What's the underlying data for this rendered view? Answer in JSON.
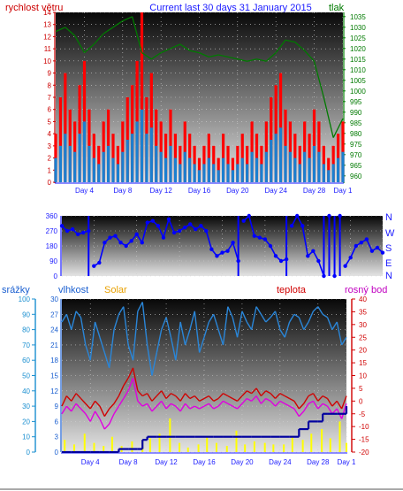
{
  "header": {
    "left_label": "rychlost větru",
    "title": "Current last 30 days 31 January 2015",
    "right_label": "tlak"
  },
  "colors": {
    "wind_gust": "#ff0000",
    "wind_avg": "#1a7fd0",
    "pressure": "#007a00",
    "direction": "#0000ff",
    "humidity": "#2a86d8",
    "solar": "#ffff00",
    "rain": "#0000a0",
    "temperature": "#d00000",
    "dewpoint": "#e000e0",
    "dew_label": "#c000c0",
    "solar_label": "#e8a000",
    "rain_axis": "#1a8fd0",
    "humidity_axis": "#1a5fd0"
  },
  "chart_data": [
    {
      "id": "wind-pressure",
      "type": "line",
      "title": "Current last 30 days 31 January 2015",
      "x_ticks": [
        "Day 4",
        "Day 8",
        "Day 12",
        "Day 16",
        "Day 20",
        "Day 24",
        "Day 28",
        "Day 1"
      ],
      "x_range_days": [
        1,
        31
      ],
      "y_left": {
        "label": "rychlost větru",
        "min": 0,
        "max": 14,
        "ticks": [
          0,
          1,
          2,
          3,
          4,
          5,
          6,
          7,
          8,
          9,
          10,
          11,
          12,
          13,
          14
        ]
      },
      "y_right": {
        "label": "tlak",
        "min": 957,
        "max": 1037,
        "ticks": [
          960,
          965,
          970,
          975,
          980,
          985,
          990,
          995,
          1000,
          1005,
          1010,
          1015,
          1020,
          1025,
          1030,
          1035
        ]
      },
      "grid": true,
      "series": [
        {
          "name": "gust",
          "axis": "left",
          "x": [
            1,
            1.5,
            2,
            2.5,
            3,
            3.5,
            4,
            4.5,
            5,
            5.5,
            6,
            6.5,
            7,
            7.5,
            8,
            8.5,
            9,
            9.5,
            10,
            10.5,
            11,
            11.5,
            12,
            12.5,
            13,
            13.5,
            14,
            14.5,
            15,
            15.5,
            16,
            16.5,
            17,
            17.5,
            18,
            18.5,
            19,
            19.5,
            20,
            20.5,
            21,
            21.5,
            22,
            22.5,
            23,
            23.5,
            24,
            24.5,
            25,
            25.5,
            26,
            26.5,
            27,
            27.5,
            28,
            28.5,
            29,
            29.5,
            30,
            30.5,
            31
          ],
          "values": [
            4,
            7,
            9,
            6,
            5,
            8,
            10,
            6,
            4,
            3,
            5,
            6,
            4,
            3,
            5,
            7,
            8,
            10,
            14,
            7,
            9,
            6,
            5,
            4,
            6,
            4,
            3,
            5,
            4,
            3,
            2,
            3,
            4,
            3,
            2,
            4,
            3,
            2,
            3,
            4,
            3,
            5,
            4,
            3,
            5,
            7,
            8,
            9,
            6,
            5,
            4,
            3,
            5,
            4,
            6,
            5,
            3,
            2,
            3,
            4,
            5
          ]
        },
        {
          "name": "average",
          "axis": "left",
          "x": [
            1,
            1.5,
            2,
            2.5,
            3,
            3.5,
            4,
            4.5,
            5,
            5.5,
            6,
            6.5,
            7,
            7.5,
            8,
            8.5,
            9,
            9.5,
            10,
            10.5,
            11,
            11.5,
            12,
            12.5,
            13,
            13.5,
            14,
            14.5,
            15,
            15.5,
            16,
            16.5,
            17,
            17.5,
            18,
            18.5,
            19,
            19.5,
            20,
            20.5,
            21,
            21.5,
            22,
            22.5,
            23,
            23.5,
            24,
            24.5,
            25,
            25.5,
            26,
            26.5,
            27,
            27.5,
            28,
            28.5,
            29,
            29.5,
            30,
            30.5,
            31
          ],
          "values": [
            2,
            3,
            4,
            3,
            2.5,
            4,
            5,
            3,
            2,
            1.5,
            2.5,
            3,
            2,
            1.5,
            2.5,
            3.5,
            4,
            5,
            6,
            4,
            4.5,
            3,
            2.5,
            2,
            3,
            2,
            1.5,
            2.5,
            2,
            1.5,
            1,
            1.5,
            2,
            1.5,
            1,
            2,
            1.5,
            1,
            1.5,
            2,
            1.5,
            2.5,
            2,
            1.5,
            2.5,
            3.5,
            4,
            4.5,
            3,
            2.5,
            2,
            1.5,
            2.5,
            2,
            3,
            2.5,
            1.5,
            1,
            1.5,
            2,
            2.5
          ]
        },
        {
          "name": "pressure",
          "axis": "right",
          "x": [
            1,
            2,
            3,
            4,
            5,
            6,
            7,
            8,
            9,
            10,
            11,
            12,
            13,
            14,
            15,
            16,
            17,
            18,
            19,
            20,
            21,
            22,
            23,
            24,
            25,
            26,
            27,
            28,
            29,
            30,
            31
          ],
          "values": [
            1028,
            1030,
            1026,
            1018,
            1022,
            1027,
            1030,
            1033,
            1035,
            1018,
            1015,
            1018,
            1020,
            1022,
            1019,
            1018,
            1016,
            1017,
            1016,
            1015,
            1014,
            1015,
            1014,
            1018,
            1024,
            1023,
            1019,
            1014,
            997,
            978,
            987
          ]
        }
      ]
    },
    {
      "id": "direction",
      "type": "scatter",
      "x_ticks": [],
      "x_range_days": [
        1,
        31
      ],
      "y_left": {
        "label": "",
        "min": 0,
        "max": 360,
        "ticks": [
          0,
          90,
          180,
          270,
          360
        ]
      },
      "y_right_labels": [
        "N",
        "W",
        "S",
        "E",
        "N"
      ],
      "grid": true,
      "series": [
        {
          "name": "direction",
          "x": [
            1,
            1.5,
            2,
            2.5,
            3,
            3.5,
            4,
            4.5,
            5,
            5.5,
            6,
            6.5,
            7,
            7.5,
            8,
            8.5,
            9,
            9.5,
            10,
            10.5,
            11,
            11.5,
            12,
            12.5,
            13,
            13.5,
            14,
            14.5,
            15,
            15.5,
            16,
            16.5,
            17,
            17.5,
            18,
            18.5,
            19,
            19.5,
            20,
            20.5,
            21,
            21.5,
            22,
            22.5,
            23,
            23.5,
            24,
            24.5,
            25,
            25.5,
            26,
            26.5,
            27,
            27.5,
            28,
            28.5,
            29,
            29.5,
            30,
            30.5,
            31
          ],
          "values": [
            300,
            270,
            280,
            250,
            260,
            270,
            60,
            80,
            200,
            230,
            240,
            200,
            180,
            210,
            250,
            200,
            320,
            330,
            300,
            230,
            340,
            260,
            270,
            290,
            310,
            280,
            300,
            270,
            160,
            120,
            140,
            150,
            200,
            90,
            330,
            360,
            240,
            230,
            220,
            180,
            120,
            90,
            100,
            300,
            360,
            300,
            120,
            150,
            90,
            0,
            360,
            0,
            360,
            60,
            110,
            180,
            200,
            220,
            150,
            170,
            140
          ]
        }
      ]
    },
    {
      "id": "temp-hum",
      "type": "line",
      "x_ticks": [
        "Day 4",
        "Day 8",
        "Day 12",
        "Day 16",
        "Day 20",
        "Day 24",
        "Day 28",
        "Day 1"
      ],
      "x_range_days": [
        1,
        31
      ],
      "labels": {
        "rain": "srážky",
        "humidity": "vlhkost",
        "solar": "Solar",
        "temperature": "teplota",
        "dewpoint": "rosný bod"
      },
      "y_rain": {
        "min": 0,
        "max": 100,
        "ticks": [
          0,
          10,
          20,
          30,
          40,
          50,
          60,
          70,
          80,
          90,
          100
        ]
      },
      "y_humidity": {
        "min": 0,
        "max": 30,
        "ticks": [
          0,
          3,
          6,
          9,
          12,
          15,
          18,
          21,
          24,
          27,
          30
        ]
      },
      "y_temperature": {
        "min": -20,
        "max": 40,
        "ticks": [
          -20,
          -15,
          -10,
          -5,
          0,
          5,
          10,
          15,
          20,
          25,
          30,
          35,
          40
        ]
      },
      "grid": true,
      "series": [
        {
          "name": "humidity",
          "axis": "rain",
          "x": [
            1,
            1.5,
            2,
            2.5,
            3,
            3.5,
            4,
            4.5,
            5,
            5.5,
            6,
            6.5,
            7,
            7.5,
            8,
            8.5,
            9,
            9.5,
            10,
            10.5,
            11,
            11.5,
            12,
            12.5,
            13,
            13.5,
            14,
            14.5,
            15,
            15.5,
            16,
            16.5,
            17,
            17.5,
            18,
            18.5,
            19,
            19.5,
            20,
            20.5,
            21,
            21.5,
            22,
            22.5,
            23,
            23.5,
            24,
            24.5,
            25,
            25.5,
            26,
            26.5,
            27,
            27.5,
            28,
            28.5,
            29,
            29.5,
            30,
            30.5,
            31
          ],
          "values": [
            85,
            90,
            80,
            92,
            88,
            70,
            60,
            85,
            75,
            65,
            55,
            80,
            90,
            95,
            70,
            60,
            92,
            98,
            70,
            50,
            65,
            80,
            88,
            75,
            60,
            85,
            70,
            80,
            92,
            65,
            75,
            85,
            90,
            80,
            70,
            95,
            88,
            75,
            92,
            85,
            80,
            95,
            90,
            85,
            88,
            92,
            80,
            75,
            85,
            90,
            88,
            80,
            85,
            92,
            95,
            90,
            88,
            80,
            85,
            70,
            75
          ]
        },
        {
          "name": "temperature",
          "axis": "temperature",
          "x": [
            1,
            1.5,
            2,
            2.5,
            3,
            3.5,
            4,
            4.5,
            5,
            5.5,
            6,
            6.5,
            7,
            7.5,
            8,
            8.5,
            9,
            9.5,
            10,
            10.5,
            11,
            11.5,
            12,
            12.5,
            13,
            13.5,
            14,
            14.5,
            15,
            15.5,
            16,
            16.5,
            17,
            17.5,
            18,
            18.5,
            19,
            19.5,
            20,
            20.5,
            21,
            21.5,
            22,
            22.5,
            23,
            23.5,
            24,
            24.5,
            25,
            25.5,
            26,
            26.5,
            27,
            27.5,
            28,
            28.5,
            29,
            29.5,
            30,
            30.5,
            31
          ],
          "values": [
            -2,
            2,
            0,
            3,
            1,
            -1,
            -3,
            0,
            -2,
            -6,
            -3,
            -1,
            2,
            6,
            9,
            13,
            4,
            2,
            3,
            0,
            2,
            4,
            1,
            3,
            2,
            0,
            3,
            1,
            2,
            0,
            1,
            2,
            0,
            1,
            3,
            2,
            1,
            0,
            2,
            4,
            3,
            5,
            2,
            4,
            3,
            1,
            3,
            2,
            1,
            0,
            -3,
            -1,
            2,
            3,
            0,
            2,
            1,
            -2,
            0,
            -3,
            2
          ]
        },
        {
          "name": "dewpoint",
          "axis": "temperature",
          "x": [
            1,
            1.5,
            2,
            2.5,
            3,
            3.5,
            4,
            4.5,
            5,
            5.5,
            6,
            6.5,
            7,
            7.5,
            8,
            8.5,
            9,
            9.5,
            10,
            10.5,
            11,
            11.5,
            12,
            12.5,
            13,
            13.5,
            14,
            14.5,
            15,
            15.5,
            16,
            16.5,
            17,
            17.5,
            18,
            18.5,
            19,
            19.5,
            20,
            20.5,
            21,
            21.5,
            22,
            22.5,
            23,
            23.5,
            24,
            24.5,
            25,
            25.5,
            26,
            26.5,
            27,
            27.5,
            28,
            28.5,
            29,
            29.5,
            30,
            30.5,
            31
          ],
          "values": [
            -5,
            -2,
            -4,
            -1,
            -3,
            -5,
            -8,
            -4,
            -7,
            -11,
            -9,
            -5,
            -2,
            1,
            4,
            9,
            0,
            -2,
            -1,
            -4,
            -2,
            0,
            -3,
            -1,
            -2,
            -4,
            -1,
            -3,
            -2,
            -3,
            -2,
            -1,
            -3,
            -2,
            0,
            -1,
            -2,
            -3,
            -1,
            1,
            0,
            2,
            -1,
            1,
            0,
            -2,
            0,
            -1,
            -2,
            -3,
            -6,
            -4,
            -1,
            0,
            -3,
            -1,
            -2,
            -5,
            -3,
            -7,
            -1
          ]
        },
        {
          "name": "rain",
          "axis": "rain",
          "x": [
            1,
            2,
            3,
            4,
            5,
            6,
            7,
            8,
            9,
            9.5,
            10,
            11,
            12,
            13,
            14,
            15,
            16,
            17,
            18,
            19,
            20,
            21,
            22,
            23,
            24,
            25,
            26,
            27,
            28,
            28.5,
            29,
            30,
            31
          ],
          "values": [
            0,
            0,
            0,
            0,
            0,
            0,
            2,
            2,
            2,
            8,
            10,
            10,
            10,
            10,
            10,
            10,
            10,
            10,
            10,
            10,
            10,
            10,
            10,
            10,
            10,
            10,
            15,
            20,
            20,
            25,
            25,
            25,
            30
          ]
        },
        {
          "name": "solar",
          "axis": "rain",
          "x": [
            1.3,
            2.3,
            3.4,
            4.4,
            5.4,
            6.3,
            7.3,
            8.4,
            9.5,
            10.3,
            11.3,
            12.4,
            13.4,
            14.3,
            15.4,
            16.3,
            17.3,
            18.4,
            19.4,
            20.3,
            21.3,
            22.4,
            23.3,
            24.4,
            25.3,
            26.4,
            27.3,
            28.4,
            29.3,
            30.3,
            31
          ],
          "values": [
            8,
            5,
            12,
            6,
            4,
            10,
            4,
            7,
            8,
            9,
            12,
            22,
            6,
            3,
            5,
            10,
            6,
            4,
            14,
            5,
            7,
            6,
            5,
            5,
            10,
            8,
            12,
            15,
            9,
            20,
            6
          ]
        }
      ]
    }
  ]
}
